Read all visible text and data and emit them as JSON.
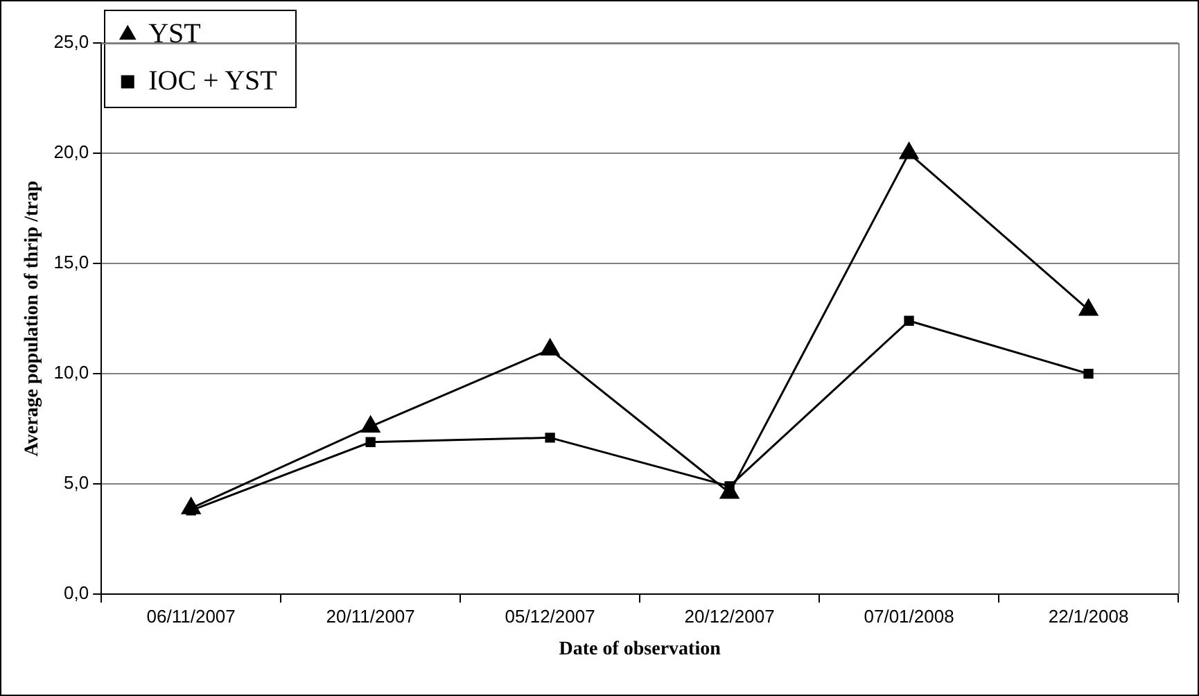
{
  "chart_data": {
    "type": "line",
    "xlabel": "Date of observation",
    "ylabel": "Average population of thrip /trap",
    "categories": [
      "06/11/2007",
      "20/11/2007",
      "05/12/2007",
      "20/12/2007",
      "07/01/2008",
      "22/1/2008"
    ],
    "series": [
      {
        "name": "YST",
        "color": "#000000",
        "marker": "triangle",
        "values": [
          3.9,
          7.6,
          11.1,
          4.6,
          20.0,
          12.9
        ]
      },
      {
        "name": "IOC + YST",
        "color": "#000000",
        "marker": "square",
        "values": [
          3.8,
          6.9,
          7.1,
          4.9,
          12.4,
          10.0
        ]
      }
    ],
    "ylim": [
      0,
      25
    ],
    "yticks": [
      {
        "value": 0,
        "label": "0,0"
      },
      {
        "value": 5,
        "label": "5,0"
      },
      {
        "value": 10,
        "label": "10,0"
      },
      {
        "value": 15,
        "label": "15,0"
      },
      {
        "value": 20,
        "label": "20,0"
      },
      {
        "value": 25,
        "label": "25,0"
      }
    ],
    "grid": "y",
    "legend": "top left",
    "line_style": "solid"
  }
}
